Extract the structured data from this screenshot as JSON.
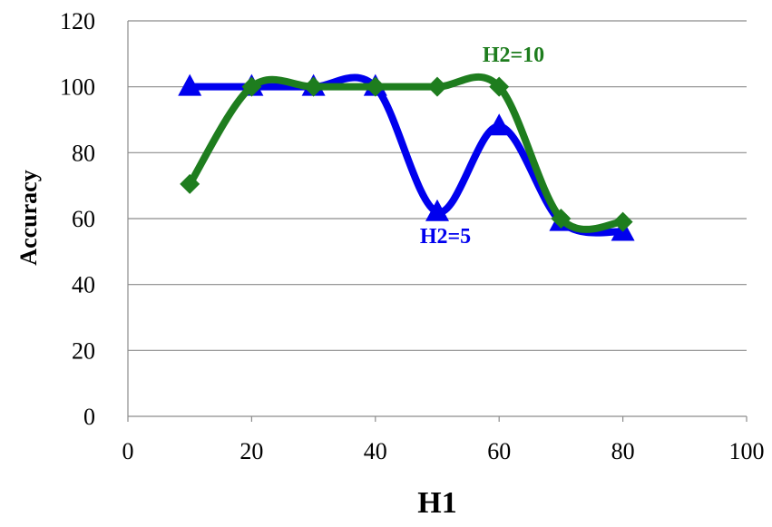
{
  "chart_data": {
    "type": "line",
    "title": "",
    "xlabel": "H1",
    "ylabel": "Accuracy",
    "xlim": [
      0,
      100
    ],
    "ylim": [
      0,
      120
    ],
    "x_ticks": [
      0,
      20,
      40,
      60,
      80,
      100
    ],
    "y_ticks": [
      0,
      20,
      40,
      60,
      80,
      100,
      120
    ],
    "grid": "horizontal",
    "smooth": true,
    "series": [
      {
        "name": "H2=5",
        "color": "#0000ee",
        "marker": "triangle",
        "x": [
          10,
          20,
          30,
          40,
          50,
          60,
          70,
          80
        ],
        "y": [
          100,
          100,
          100,
          100,
          62,
          88,
          59,
          56
        ]
      },
      {
        "name": "H2=10",
        "color": "#1e7d1e",
        "marker": "diamond",
        "x": [
          10,
          20,
          30,
          40,
          50,
          60,
          70,
          80
        ],
        "y": [
          70.5,
          100,
          100,
          100,
          100,
          100,
          60,
          59
        ]
      }
    ]
  }
}
